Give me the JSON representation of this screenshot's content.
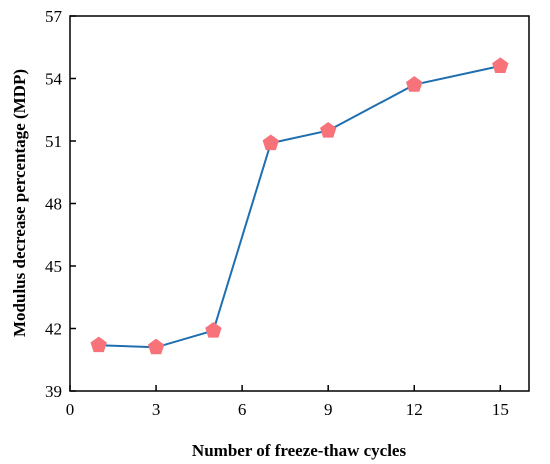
{
  "chart_data": {
    "type": "line",
    "title": "",
    "xlabel": "Number of freeze-thaw cycles",
    "ylabel": "Modulus decrease percentage (MDP)",
    "xlim": [
      0,
      16
    ],
    "ylim": [
      39,
      57
    ],
    "xticks": [
      0,
      3,
      6,
      9,
      12,
      15
    ],
    "yticks": [
      39,
      42,
      45,
      48,
      51,
      54,
      57
    ],
    "x": [
      1,
      3,
      5,
      7,
      9,
      12,
      15
    ],
    "series": [
      {
        "values": [
          41.2,
          41.1,
          41.9,
          50.9,
          51.5,
          53.7,
          54.6
        ],
        "line_color": "#1f6fb0",
        "marker_color": "#f8727a",
        "marker": "pentagon"
      }
    ],
    "grid": false,
    "legend": "none"
  }
}
